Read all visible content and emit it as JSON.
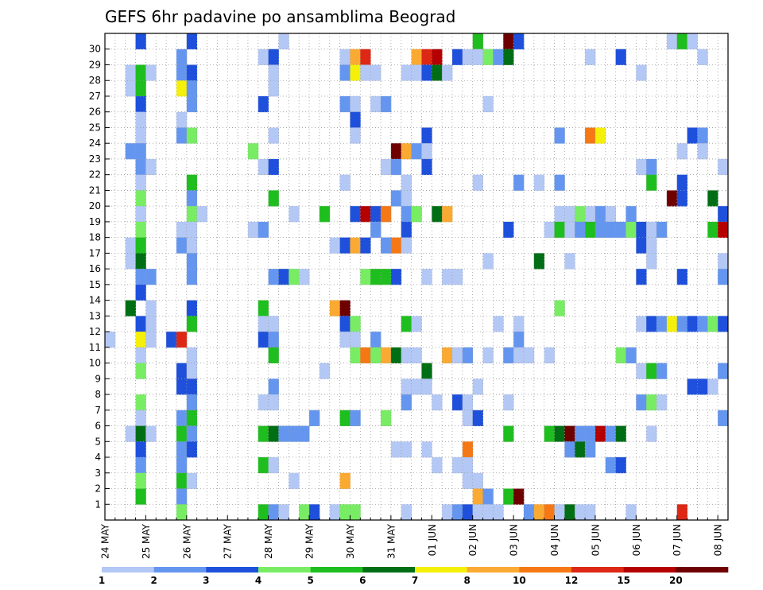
{
  "chart_data": {
    "type": "heatmap",
    "title": "GEFS 6hr padavine po ansamblima Beograd",
    "xlabel": "",
    "ylabel": "",
    "x_tick_labels": [
      "24 MAY",
      "25 MAY",
      "26 MAY",
      "27 MAY",
      "28 MAY",
      "29 MAY",
      "30 MAY",
      "31 MAY",
      "01 JUN",
      "02 JUN",
      "03 JUN",
      "04 JUN",
      "05 JUN",
      "06 JUN",
      "07 JUN",
      "08 JUN"
    ],
    "y_tick_labels": [
      "1",
      "2",
      "3",
      "4",
      "5",
      "6",
      "7",
      "8",
      "9",
      "10",
      "11",
      "12",
      "13",
      "14",
      "15",
      "16",
      "17",
      "18",
      "19",
      "20",
      "21",
      "22",
      "23",
      "24",
      "25",
      "26",
      "27",
      "28",
      "29",
      "30"
    ],
    "time_steps": 61,
    "members": 31,
    "grid": true,
    "colorbar": {
      "levels": [
        "1",
        "2",
        "3",
        "4",
        "5",
        "6",
        "7",
        "8",
        "10",
        "12",
        "15",
        "20"
      ],
      "colors": [
        "#b4c8f5",
        "#6496f0",
        "#1e50dc",
        "#78ed64",
        "#1ebe1e",
        "#006e14",
        "#f5f00a",
        "#faaa32",
        "#f57814",
        "#dc2814",
        "#b40000",
        "#6e0000"
      ]
    },
    "cells": [
      [
        3,
        30,
        3
      ],
      [
        8,
        30,
        3
      ],
      [
        17,
        30,
        1
      ],
      [
        36,
        30,
        5
      ],
      [
        39,
        30,
        12
      ],
      [
        40,
        30,
        3
      ],
      [
        55,
        30,
        1
      ],
      [
        56,
        30,
        5
      ],
      [
        57,
        30,
        1
      ],
      [
        7,
        29,
        2
      ],
      [
        15,
        29,
        1
      ],
      [
        16,
        29,
        3
      ],
      [
        23,
        29,
        1
      ],
      [
        24,
        29,
        8
      ],
      [
        25,
        29,
        10
      ],
      [
        30,
        29,
        8
      ],
      [
        31,
        29,
        10
      ],
      [
        32,
        29,
        11
      ],
      [
        34,
        29,
        3
      ],
      [
        35,
        29,
        1
      ],
      [
        36,
        29,
        1
      ],
      [
        37,
        29,
        4
      ],
      [
        38,
        29,
        2
      ],
      [
        39,
        29,
        6
      ],
      [
        47,
        29,
        1
      ],
      [
        50,
        29,
        3
      ],
      [
        58,
        29,
        1
      ],
      [
        2,
        28,
        1
      ],
      [
        3,
        28,
        5
      ],
      [
        4,
        28,
        1
      ],
      [
        7,
        28,
        2
      ],
      [
        8,
        28,
        3
      ],
      [
        16,
        28,
        1
      ],
      [
        23,
        28,
        2
      ],
      [
        24,
        28,
        7
      ],
      [
        25,
        28,
        1
      ],
      [
        26,
        28,
        1
      ],
      [
        29,
        28,
        1
      ],
      [
        30,
        28,
        1
      ],
      [
        31,
        28,
        3
      ],
      [
        32,
        28,
        6
      ],
      [
        33,
        28,
        1
      ],
      [
        52,
        28,
        1
      ],
      [
        2,
        27,
        1
      ],
      [
        3,
        27,
        5
      ],
      [
        7,
        27,
        7
      ],
      [
        8,
        27,
        2
      ],
      [
        16,
        27,
        1
      ],
      [
        3,
        26,
        3
      ],
      [
        8,
        26,
        2
      ],
      [
        15,
        26,
        3
      ],
      [
        23,
        26,
        2
      ],
      [
        24,
        26,
        1
      ],
      [
        26,
        26,
        1
      ],
      [
        27,
        26,
        2
      ],
      [
        37,
        26,
        1
      ],
      [
        3,
        25,
        1
      ],
      [
        7,
        25,
        1
      ],
      [
        24,
        25,
        3
      ],
      [
        3,
        24,
        1
      ],
      [
        7,
        24,
        2
      ],
      [
        8,
        24,
        4
      ],
      [
        16,
        24,
        1
      ],
      [
        24,
        24,
        1
      ],
      [
        31,
        24,
        3
      ],
      [
        44,
        24,
        2
      ],
      [
        47,
        24,
        9
      ],
      [
        48,
        24,
        7
      ],
      [
        57,
        24,
        3
      ],
      [
        58,
        24,
        2
      ],
      [
        2,
        23,
        2
      ],
      [
        3,
        23,
        2
      ],
      [
        14,
        23,
        4
      ],
      [
        28,
        23,
        12
      ],
      [
        29,
        23,
        8
      ],
      [
        30,
        23,
        2
      ],
      [
        31,
        23,
        1
      ],
      [
        56,
        23,
        1
      ],
      [
        58,
        23,
        1
      ],
      [
        3,
        22,
        2
      ],
      [
        4,
        22,
        1
      ],
      [
        15,
        22,
        1
      ],
      [
        16,
        22,
        3
      ],
      [
        27,
        22,
        1
      ],
      [
        28,
        22,
        2
      ],
      [
        31,
        22,
        3
      ],
      [
        52,
        22,
        1
      ],
      [
        53,
        22,
        2
      ],
      [
        60,
        22,
        1
      ],
      [
        3,
        21,
        1
      ],
      [
        8,
        21,
        5
      ],
      [
        23,
        21,
        1
      ],
      [
        29,
        21,
        1
      ],
      [
        36,
        21,
        1
      ],
      [
        40,
        21,
        2
      ],
      [
        42,
        21,
        1
      ],
      [
        44,
        21,
        2
      ],
      [
        53,
        21,
        5
      ],
      [
        56,
        21,
        3
      ],
      [
        3,
        20,
        4
      ],
      [
        8,
        20,
        2
      ],
      [
        16,
        20,
        5
      ],
      [
        28,
        20,
        2
      ],
      [
        29,
        20,
        1
      ],
      [
        55,
        20,
        12
      ],
      [
        56,
        20,
        3
      ],
      [
        59,
        20,
        6
      ],
      [
        3,
        19,
        1
      ],
      [
        8,
        19,
        4
      ],
      [
        9,
        19,
        1
      ],
      [
        18,
        19,
        1
      ],
      [
        21,
        19,
        5
      ],
      [
        24,
        19,
        3
      ],
      [
        25,
        19,
        11
      ],
      [
        26,
        19,
        3
      ],
      [
        27,
        19,
        9
      ],
      [
        29,
        19,
        2
      ],
      [
        30,
        19,
        4
      ],
      [
        32,
        19,
        6
      ],
      [
        33,
        19,
        8
      ],
      [
        44,
        19,
        1
      ],
      [
        45,
        19,
        1
      ],
      [
        46,
        19,
        4
      ],
      [
        47,
        19,
        1
      ],
      [
        48,
        19,
        2
      ],
      [
        49,
        19,
        1
      ],
      [
        51,
        19,
        2
      ],
      [
        60,
        19,
        3
      ],
      [
        3,
        18,
        4
      ],
      [
        7,
        18,
        1
      ],
      [
        8,
        18,
        1
      ],
      [
        14,
        18,
        1
      ],
      [
        15,
        18,
        2
      ],
      [
        26,
        18,
        2
      ],
      [
        29,
        18,
        3
      ],
      [
        39,
        18,
        3
      ],
      [
        43,
        18,
        1
      ],
      [
        44,
        18,
        5
      ],
      [
        45,
        18,
        1
      ],
      [
        46,
        18,
        2
      ],
      [
        47,
        18,
        5
      ],
      [
        48,
        18,
        2
      ],
      [
        49,
        18,
        2
      ],
      [
        50,
        18,
        2
      ],
      [
        51,
        18,
        4
      ],
      [
        52,
        18,
        3
      ],
      [
        53,
        18,
        1
      ],
      [
        54,
        18,
        2
      ],
      [
        59,
        18,
        5
      ],
      [
        60,
        18,
        11
      ],
      [
        2,
        17,
        1
      ],
      [
        3,
        17,
        5
      ],
      [
        7,
        17,
        2
      ],
      [
        8,
        17,
        1
      ],
      [
        22,
        17,
        1
      ],
      [
        23,
        17,
        3
      ],
      [
        24,
        17,
        8
      ],
      [
        25,
        17,
        3
      ],
      [
        27,
        17,
        2
      ],
      [
        28,
        17,
        9
      ],
      [
        29,
        17,
        1
      ],
      [
        52,
        17,
        3
      ],
      [
        53,
        17,
        1
      ],
      [
        2,
        16,
        1
      ],
      [
        3,
        16,
        6
      ],
      [
        8,
        16,
        2
      ],
      [
        37,
        16,
        1
      ],
      [
        42,
        16,
        6
      ],
      [
        45,
        16,
        1
      ],
      [
        53,
        16,
        1
      ],
      [
        60,
        16,
        1
      ],
      [
        3,
        15,
        2
      ],
      [
        4,
        15,
        2
      ],
      [
        8,
        15,
        2
      ],
      [
        16,
        15,
        2
      ],
      [
        17,
        15,
        3
      ],
      [
        18,
        15,
        4
      ],
      [
        19,
        15,
        1
      ],
      [
        25,
        15,
        4
      ],
      [
        26,
        15,
        5
      ],
      [
        27,
        15,
        5
      ],
      [
        28,
        15,
        3
      ],
      [
        31,
        15,
        1
      ],
      [
        33,
        15,
        1
      ],
      [
        34,
        15,
        1
      ],
      [
        52,
        15,
        3
      ],
      [
        56,
        15,
        3
      ],
      [
        60,
        15,
        2
      ],
      [
        3,
        14,
        3
      ],
      [
        2,
        13,
        6
      ],
      [
        4,
        13,
        1
      ],
      [
        8,
        13,
        3
      ],
      [
        15,
        13,
        5
      ],
      [
        22,
        13,
        8
      ],
      [
        23,
        13,
        12
      ],
      [
        44,
        13,
        4
      ],
      [
        3,
        12,
        3
      ],
      [
        4,
        12,
        1
      ],
      [
        8,
        12,
        5
      ],
      [
        15,
        12,
        1
      ],
      [
        16,
        12,
        1
      ],
      [
        23,
        12,
        3
      ],
      [
        24,
        12,
        4
      ],
      [
        29,
        12,
        5
      ],
      [
        30,
        12,
        1
      ],
      [
        38,
        12,
        1
      ],
      [
        40,
        12,
        1
      ],
      [
        52,
        12,
        1
      ],
      [
        53,
        12,
        3
      ],
      [
        54,
        12,
        2
      ],
      [
        55,
        12,
        7
      ],
      [
        56,
        12,
        2
      ],
      [
        57,
        12,
        3
      ],
      [
        58,
        12,
        2
      ],
      [
        59,
        12,
        4
      ],
      [
        60,
        12,
        3
      ],
      [
        0,
        11,
        1
      ],
      [
        3,
        11,
        7
      ],
      [
        4,
        11,
        1
      ],
      [
        6,
        11,
        3
      ],
      [
        7,
        11,
        10
      ],
      [
        15,
        11,
        3
      ],
      [
        16,
        11,
        2
      ],
      [
        23,
        11,
        1
      ],
      [
        24,
        11,
        1
      ],
      [
        26,
        11,
        2
      ],
      [
        40,
        11,
        2
      ],
      [
        3,
        10,
        1
      ],
      [
        8,
        10,
        1
      ],
      [
        16,
        10,
        5
      ],
      [
        24,
        10,
        4
      ],
      [
        25,
        10,
        9
      ],
      [
        26,
        10,
        4
      ],
      [
        27,
        10,
        8
      ],
      [
        28,
        10,
        6
      ],
      [
        29,
        10,
        1
      ],
      [
        30,
        10,
        1
      ],
      [
        33,
        10,
        8
      ],
      [
        34,
        10,
        1
      ],
      [
        35,
        10,
        2
      ],
      [
        37,
        10,
        1
      ],
      [
        39,
        10,
        2
      ],
      [
        40,
        10,
        1
      ],
      [
        41,
        10,
        1
      ],
      [
        43,
        10,
        1
      ],
      [
        50,
        10,
        4
      ],
      [
        51,
        10,
        2
      ],
      [
        3,
        9,
        4
      ],
      [
        7,
        9,
        3
      ],
      [
        8,
        9,
        1
      ],
      [
        21,
        9,
        1
      ],
      [
        31,
        9,
        6
      ],
      [
        52,
        9,
        1
      ],
      [
        53,
        9,
        5
      ],
      [
        54,
        9,
        2
      ],
      [
        60,
        9,
        2
      ],
      [
        7,
        8,
        3
      ],
      [
        8,
        8,
        3
      ],
      [
        16,
        8,
        2
      ],
      [
        29,
        8,
        1
      ],
      [
        30,
        8,
        1
      ],
      [
        31,
        8,
        1
      ],
      [
        36,
        8,
        1
      ],
      [
        57,
        8,
        3
      ],
      [
        58,
        8,
        3
      ],
      [
        59,
        8,
        1
      ],
      [
        3,
        7,
        4
      ],
      [
        8,
        7,
        2
      ],
      [
        15,
        7,
        1
      ],
      [
        16,
        7,
        1
      ],
      [
        29,
        7,
        2
      ],
      [
        32,
        7,
        1
      ],
      [
        34,
        7,
        3
      ],
      [
        35,
        7,
        1
      ],
      [
        39,
        7,
        1
      ],
      [
        52,
        7,
        2
      ],
      [
        53,
        7,
        4
      ],
      [
        54,
        7,
        1
      ],
      [
        3,
        6,
        1
      ],
      [
        7,
        6,
        2
      ],
      [
        8,
        6,
        5
      ],
      [
        20,
        6,
        2
      ],
      [
        23,
        6,
        5
      ],
      [
        24,
        6,
        2
      ],
      [
        27,
        6,
        4
      ],
      [
        35,
        6,
        1
      ],
      [
        36,
        6,
        3
      ],
      [
        60,
        6,
        2
      ],
      [
        2,
        5,
        1
      ],
      [
        3,
        5,
        6
      ],
      [
        4,
        5,
        1
      ],
      [
        7,
        5,
        5
      ],
      [
        8,
        5,
        2
      ],
      [
        15,
        5,
        5
      ],
      [
        16,
        5,
        6
      ],
      [
        17,
        5,
        2
      ],
      [
        18,
        5,
        2
      ],
      [
        19,
        5,
        2
      ],
      [
        39,
        5,
        5
      ],
      [
        43,
        5,
        5
      ],
      [
        44,
        5,
        6
      ],
      [
        45,
        5,
        12
      ],
      [
        46,
        5,
        2
      ],
      [
        47,
        5,
        2
      ],
      [
        48,
        5,
        11
      ],
      [
        49,
        5,
        2
      ],
      [
        50,
        5,
        6
      ],
      [
        53,
        5,
        1
      ],
      [
        3,
        4,
        3
      ],
      [
        7,
        4,
        2
      ],
      [
        8,
        4,
        3
      ],
      [
        28,
        4,
        1
      ],
      [
        29,
        4,
        1
      ],
      [
        31,
        4,
        1
      ],
      [
        35,
        4,
        9
      ],
      [
        45,
        4,
        2
      ],
      [
        46,
        4,
        6
      ],
      [
        47,
        4,
        2
      ],
      [
        3,
        3,
        2
      ],
      [
        7,
        3,
        2
      ],
      [
        15,
        3,
        5
      ],
      [
        16,
        3,
        1
      ],
      [
        32,
        3,
        1
      ],
      [
        34,
        3,
        1
      ],
      [
        35,
        3,
        1
      ],
      [
        49,
        3,
        2
      ],
      [
        50,
        3,
        3
      ],
      [
        3,
        2,
        4
      ],
      [
        7,
        2,
        5
      ],
      [
        8,
        2,
        1
      ],
      [
        18,
        2,
        1
      ],
      [
        23,
        2,
        8
      ],
      [
        35,
        2,
        1
      ],
      [
        36,
        2,
        1
      ],
      [
        3,
        1,
        5
      ],
      [
        7,
        1,
        2
      ],
      [
        36,
        1,
        8
      ],
      [
        37,
        1,
        2
      ],
      [
        39,
        1,
        5
      ],
      [
        40,
        1,
        12
      ],
      [
        7,
        0,
        4
      ],
      [
        15,
        0,
        5
      ],
      [
        16,
        0,
        2
      ],
      [
        17,
        0,
        1
      ],
      [
        19,
        0,
        4
      ],
      [
        20,
        0,
        3
      ],
      [
        22,
        0,
        1
      ],
      [
        23,
        0,
        4
      ],
      [
        24,
        0,
        4
      ],
      [
        29,
        0,
        1
      ],
      [
        33,
        0,
        1
      ],
      [
        34,
        0,
        2
      ],
      [
        35,
        0,
        3
      ],
      [
        36,
        0,
        1
      ],
      [
        37,
        0,
        1
      ],
      [
        38,
        0,
        1
      ],
      [
        41,
        0,
        2
      ],
      [
        42,
        0,
        8
      ],
      [
        43,
        0,
        9
      ],
      [
        44,
        0,
        1
      ],
      [
        45,
        0,
        6
      ],
      [
        46,
        0,
        1
      ],
      [
        47,
        0,
        1
      ],
      [
        51,
        0,
        1
      ],
      [
        56,
        0,
        10
      ]
    ]
  }
}
